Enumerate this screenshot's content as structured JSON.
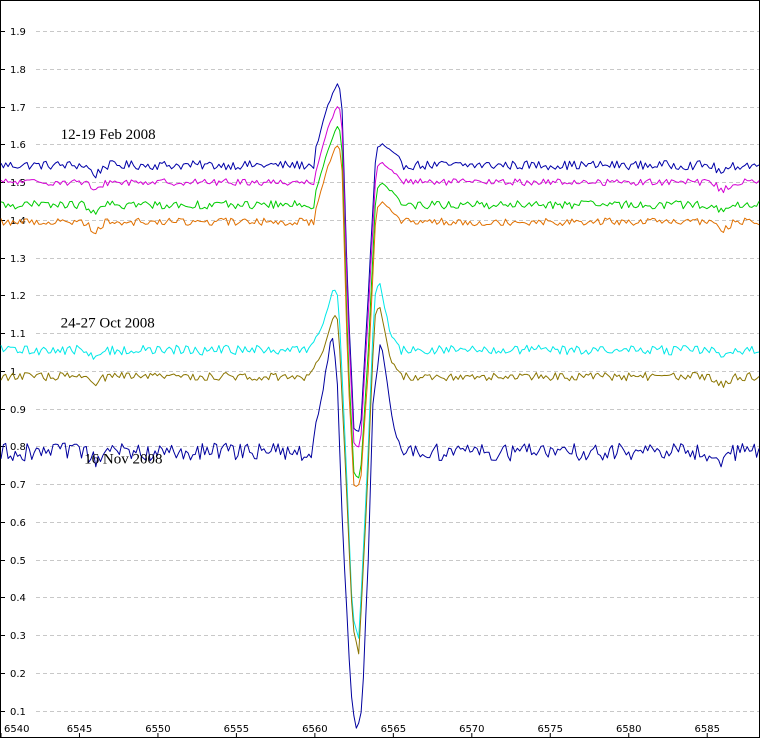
{
  "chart_data": {
    "type": "line",
    "title": "",
    "xlabel": "",
    "ylabel": "",
    "xlim": [
      6540,
      6588.3
    ],
    "ylim": [
      0.03,
      1.98
    ],
    "grid": {
      "y": true,
      "x": false,
      "style": "dashed"
    },
    "x_ticks": [
      6540,
      6545,
      6550,
      6555,
      6560,
      6565,
      6570,
      6575,
      6580,
      6585
    ],
    "y_ticks": [
      0.1,
      0.2,
      0.3,
      0.4,
      0.5,
      0.6,
      0.7,
      0.8,
      0.9,
      1,
      1.1,
      1.2,
      1.3,
      1.4,
      1.5,
      1.6,
      1.7,
      1.8,
      1.9
    ],
    "annotations": [
      {
        "text": "12-19 Feb 2008",
        "x": 6543.8,
        "y": 1.615
      },
      {
        "text": "24-27 Oct 2008",
        "x": 6543.8,
        "y": 1.115
      },
      {
        "text": "16 Nov 2008",
        "x": 6545.3,
        "y": 0.755
      }
    ],
    "series": [
      {
        "color": "#0000a8",
        "baseline": 1.545,
        "noise": 0.012,
        "points": [
          [
            6560.0,
            1.58
          ],
          [
            6560.8,
            1.7
          ],
          [
            6561.4,
            1.76
          ],
          [
            6561.7,
            1.74
          ],
          [
            6562.1,
            1.2
          ],
          [
            6562.5,
            0.84
          ],
          [
            6562.9,
            0.84
          ],
          [
            6563.4,
            1.2
          ],
          [
            6563.9,
            1.59
          ],
          [
            6564.3,
            1.6
          ],
          [
            6565.5,
            1.56
          ]
        ]
      },
      {
        "color": "#d400d4",
        "baseline": 1.5,
        "noise": 0.009,
        "points": [
          [
            6560.0,
            1.52
          ],
          [
            6560.8,
            1.64
          ],
          [
            6561.4,
            1.7
          ],
          [
            6561.7,
            1.69
          ],
          [
            6562.1,
            1.15
          ],
          [
            6562.5,
            0.8
          ],
          [
            6562.9,
            0.8
          ],
          [
            6563.4,
            1.15
          ],
          [
            6563.9,
            1.54
          ],
          [
            6564.3,
            1.55
          ],
          [
            6565.5,
            1.51
          ]
        ]
      },
      {
        "color": "#00cc00",
        "baseline": 1.44,
        "noise": 0.011,
        "points": [
          [
            6560.0,
            1.47
          ],
          [
            6560.8,
            1.58
          ],
          [
            6561.4,
            1.65
          ],
          [
            6561.7,
            1.63
          ],
          [
            6562.1,
            1.05
          ],
          [
            6562.5,
            0.72
          ],
          [
            6562.9,
            0.72
          ],
          [
            6563.4,
            1.05
          ],
          [
            6563.9,
            1.48
          ],
          [
            6564.3,
            1.5
          ],
          [
            6565.5,
            1.45
          ]
        ]
      },
      {
        "color": "#e07000",
        "baseline": 1.395,
        "noise": 0.01,
        "points": [
          [
            6560.0,
            1.42
          ],
          [
            6560.8,
            1.54
          ],
          [
            6561.4,
            1.6
          ],
          [
            6561.7,
            1.58
          ],
          [
            6562.1,
            1.0
          ],
          [
            6562.5,
            0.69
          ],
          [
            6562.9,
            0.7
          ],
          [
            6563.4,
            1.0
          ],
          [
            6563.9,
            1.43
          ],
          [
            6564.3,
            1.45
          ],
          [
            6565.5,
            1.4
          ]
        ]
      },
      {
        "color": "#00e8e8",
        "baseline": 1.055,
        "noise": 0.013,
        "points": [
          [
            6559.5,
            1.05
          ],
          [
            6560.5,
            1.12
          ],
          [
            6561.2,
            1.22
          ],
          [
            6561.5,
            1.2
          ],
          [
            6562.0,
            0.75
          ],
          [
            6562.4,
            0.35
          ],
          [
            6562.8,
            0.29
          ],
          [
            6563.3,
            0.7
          ],
          [
            6563.8,
            1.2
          ],
          [
            6564.1,
            1.24
          ],
          [
            6564.8,
            1.1
          ],
          [
            6565.5,
            1.06
          ]
        ]
      },
      {
        "color": "#8b7500",
        "baseline": 0.985,
        "noise": 0.011,
        "points": [
          [
            6559.5,
            0.98
          ],
          [
            6560.5,
            1.05
          ],
          [
            6561.2,
            1.15
          ],
          [
            6561.5,
            1.13
          ],
          [
            6562.0,
            0.7
          ],
          [
            6562.4,
            0.33
          ],
          [
            6562.8,
            0.25
          ],
          [
            6563.3,
            0.65
          ],
          [
            6563.8,
            1.14
          ],
          [
            6564.1,
            1.18
          ],
          [
            6564.8,
            1.03
          ],
          [
            6565.5,
            0.99
          ]
        ]
      },
      {
        "color": "#00009e",
        "baseline": 0.785,
        "noise": 0.024,
        "points": [
          [
            6559.8,
            0.8
          ],
          [
            6560.5,
            0.95
          ],
          [
            6561.1,
            1.1
          ],
          [
            6561.4,
            1.0
          ],
          [
            6561.8,
            0.55
          ],
          [
            6562.3,
            0.15
          ],
          [
            6562.6,
            0.05
          ],
          [
            6563.0,
            0.1
          ],
          [
            6563.4,
            0.5
          ],
          [
            6563.7,
            0.92
          ],
          [
            6564.2,
            1.08
          ],
          [
            6565.0,
            0.86
          ],
          [
            6565.5,
            0.79
          ]
        ]
      }
    ]
  }
}
